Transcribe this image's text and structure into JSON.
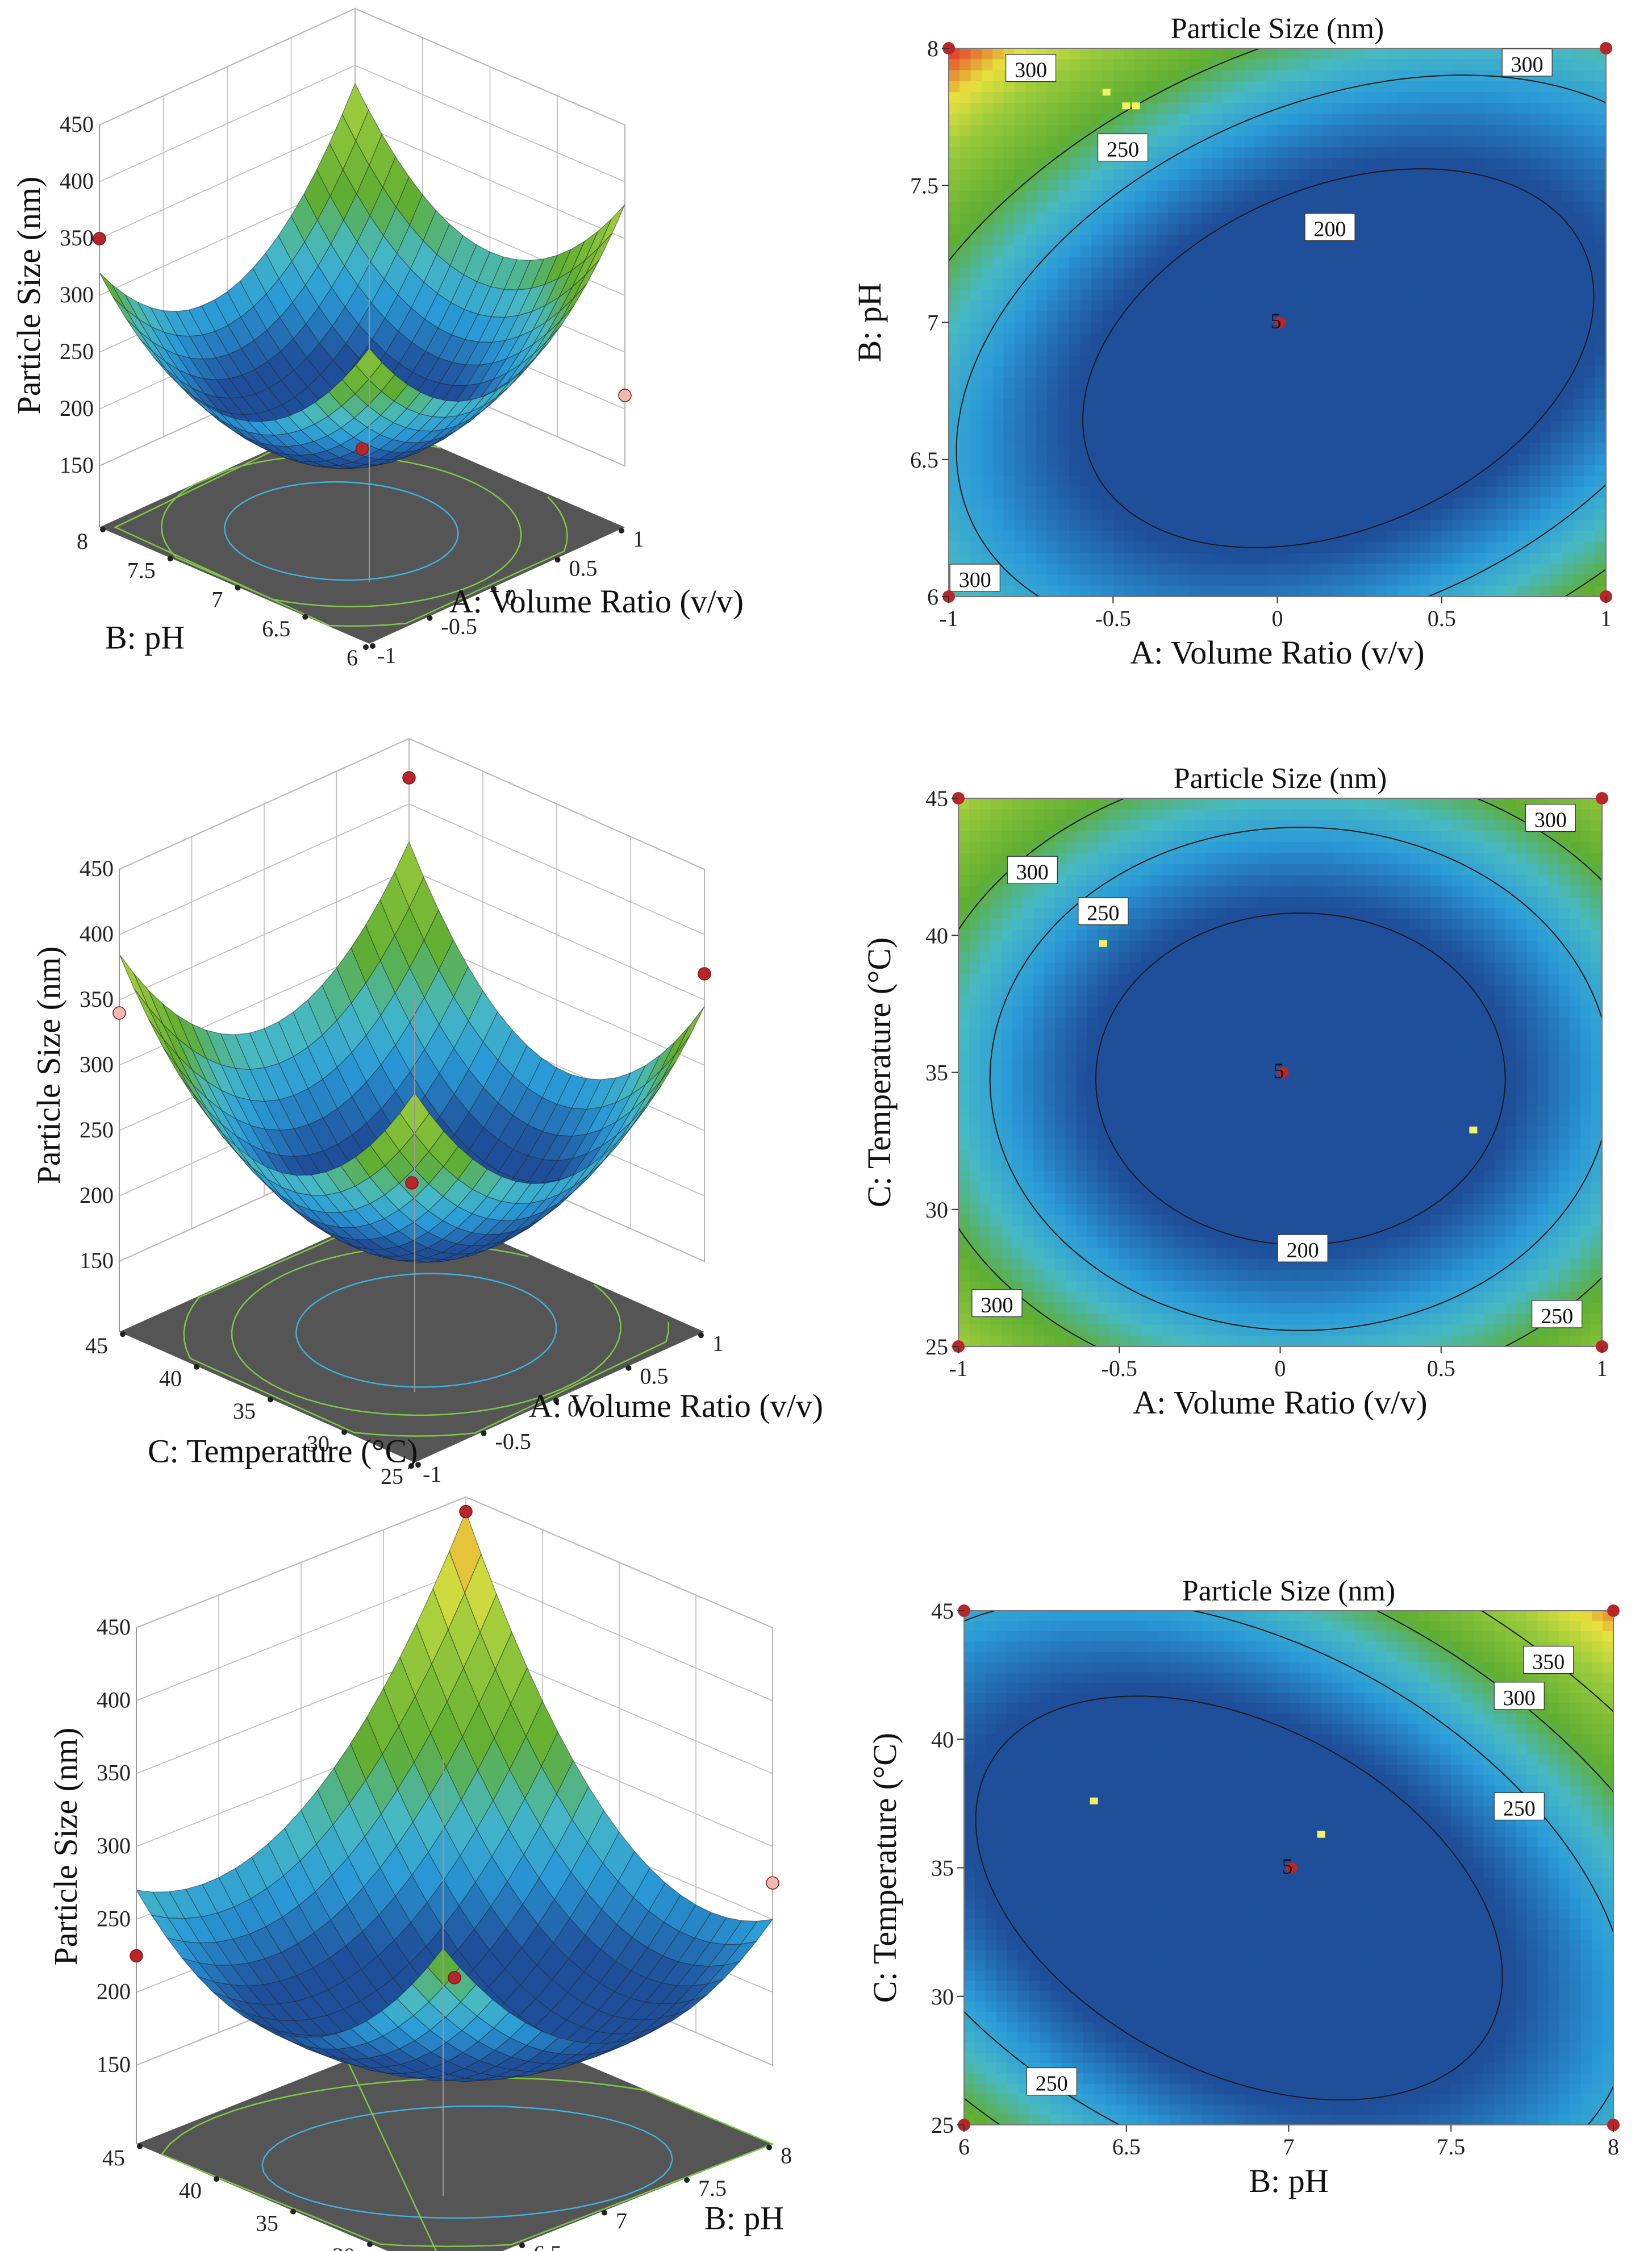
{
  "chart_data": [
    {
      "type": "surface",
      "id": "s1",
      "xlabel": "A: Volume Ratio (v/v)",
      "ylabel": "B: pH",
      "zlabel": "Particle Size (nm)",
      "x_ticks": [
        "-1",
        "-0.5",
        "0",
        "0.5",
        "1"
      ],
      "y_ticks": [
        "6",
        "6.5",
        "7",
        "7.5",
        "8"
      ],
      "z_ticks": [
        "150",
        "200",
        "250",
        "300",
        "350",
        "400",
        "450"
      ],
      "xlim": [
        -1,
        1
      ],
      "ylim": [
        6,
        8
      ],
      "zlim": [
        150,
        450
      ],
      "model": {
        "c": 165,
        "a": 22,
        "b": -8,
        "aa": 100,
        "bb": 95,
        "ab": 10
      },
      "design_points": [
        {
          "x": -1,
          "y": 8,
          "z": 350
        },
        {
          "x": 1,
          "y": 6,
          "z": 212
        },
        {
          "x": 0,
          "y": 7,
          "z": 165
        }
      ]
    },
    {
      "type": "contour",
      "id": "c1",
      "title": "Particle Size (nm)",
      "xlabel": "A: Volume Ratio (v/v)",
      "ylabel": "B: pH",
      "x_ticks": [
        "-1",
        "-0.5",
        "0",
        "0.5",
        "1"
      ],
      "y_ticks": [
        "6",
        "6.5",
        "7",
        "7.5",
        "8"
      ],
      "xlim": [
        -1,
        1
      ],
      "ylim": [
        6,
        8
      ],
      "model": {
        "c": 165,
        "a": -35,
        "b": 35,
        "aa": 75,
        "bb": 95,
        "ab": -55
      },
      "contour_levels": [
        200,
        250,
        300
      ],
      "contour_labels": [
        {
          "text": "300",
          "x": -0.75,
          "y": 7.92
        },
        {
          "text": "300",
          "x": 0.76,
          "y": 7.94
        },
        {
          "text": "250",
          "x": -0.47,
          "y": 7.63
        },
        {
          "text": "200",
          "x": 0.16,
          "y": 7.34
        },
        {
          "text": "300",
          "x": -0.92,
          "y": 6.06
        }
      ],
      "center_point": {
        "x": 0,
        "y": 7,
        "label": "5"
      },
      "corner_points": [
        {
          "x": -1,
          "y": 8
        },
        {
          "x": 1,
          "y": 8
        },
        {
          "x": -1,
          "y": 6
        },
        {
          "x": 1,
          "y": 6
        }
      ],
      "markers": [
        {
          "x": -0.52,
          "y": 7.84
        },
        {
          "x": -0.46,
          "y": 7.79
        },
        {
          "x": -0.43,
          "y": 7.79
        }
      ]
    },
    {
      "type": "surface",
      "id": "s2",
      "xlabel": "A: Volume Ratio (v/v)",
      "ylabel": "C: Temperature (°C)",
      "zlabel": "Particle Size (nm)",
      "x_ticks": [
        "-1",
        "-0.5",
        "0",
        "0.5",
        "1"
      ],
      "y_ticks": [
        "25",
        "30",
        "35",
        "40",
        "45"
      ],
      "z_ticks": [
        "150",
        "200",
        "250",
        "300",
        "350",
        "400",
        "450"
      ],
      "xlim": [
        -1,
        1
      ],
      "ylim": [
        25,
        45
      ],
      "zlim": [
        150,
        450
      ],
      "model": {
        "c": 160,
        "a": -12,
        "b": 8,
        "aa": 100,
        "bb": 110,
        "ab": 5
      },
      "design_points": [
        {
          "x": -1,
          "y": 45,
          "z": 340
        },
        {
          "x": 1,
          "y": 25,
          "z": 370
        },
        {
          "x": 1,
          "y": 45,
          "z": 420
        },
        {
          "x": 0,
          "y": 35,
          "z": 210
        }
      ]
    },
    {
      "type": "contour",
      "id": "c2",
      "title": "Particle Size (nm)",
      "xlabel": "A: Volume Ratio (v/v)",
      "ylabel": "C: Temperature (°C)",
      "x_ticks": [
        "-1",
        "-0.5",
        "0",
        "0.5",
        "1"
      ],
      "y_ticks": [
        "25",
        "30",
        "35",
        "40",
        "45"
      ],
      "xlim": [
        -1,
        1
      ],
      "ylim": [
        25,
        45
      ],
      "model": {
        "c": 162,
        "a": -12,
        "b": 5,
        "aa": 95,
        "bb": 105,
        "ab": 0
      },
      "contour_levels": [
        200,
        250,
        300
      ],
      "contour_labels": [
        {
          "text": "300",
          "x": -0.77,
          "y": 42.3
        },
        {
          "text": "300",
          "x": 0.84,
          "y": 44.2
        },
        {
          "text": "250",
          "x": -0.55,
          "y": 40.8
        },
        {
          "text": "200",
          "x": 0.07,
          "y": 28.5
        },
        {
          "text": "300",
          "x": -0.88,
          "y": 26.5
        },
        {
          "text": "250",
          "x": 0.86,
          "y": 26.1
        }
      ],
      "center_point": {
        "x": 0,
        "y": 35,
        "label": "5"
      },
      "corner_points": [
        {
          "x": -1,
          "y": 45
        },
        {
          "x": 1,
          "y": 45
        },
        {
          "x": -1,
          "y": 25
        },
        {
          "x": 1,
          "y": 25
        }
      ],
      "markers": [
        {
          "x": -0.55,
          "y": 39.7
        },
        {
          "x": 0.6,
          "y": 32.9
        }
      ]
    },
    {
      "type": "surface",
      "id": "s3",
      "xlabel": "B: pH",
      "ylabel": "C: Temperature (°C)",
      "zlabel": "Particle Size (nm)",
      "x_ticks": [
        "6",
        "6.5",
        "7",
        "7.5",
        "8"
      ],
      "y_ticks": [
        "25",
        "30",
        "35",
        "40",
        "45"
      ],
      "z_ticks": [
        "150",
        "200",
        "250",
        "300",
        "350",
        "400",
        "450"
      ],
      "xlim": [
        6,
        8
      ],
      "ylim": [
        25,
        45
      ],
      "zlim": [
        150,
        450
      ],
      "model": {
        "c": 165,
        "a": 25,
        "b": 35,
        "aa": 75,
        "bb": 80,
        "ab": 60
      },
      "design_points": [
        {
          "x": 8,
          "y": 45,
          "z": 440
        },
        {
          "x": 8,
          "y": 25,
          "z": 275
        },
        {
          "x": 6,
          "y": 45,
          "z": 225
        },
        {
          "x": 7,
          "y": 35,
          "z": 210
        }
      ]
    },
    {
      "type": "contour",
      "id": "c3",
      "title": "Particle Size (nm)",
      "xlabel": "B: pH",
      "ylabel": "C: Temperature (°C)",
      "x_ticks": [
        "6",
        "6.5",
        "7",
        "7.5",
        "8"
      ],
      "y_ticks": [
        "25",
        "30",
        "35",
        "40",
        "45"
      ],
      "xlim": [
        6,
        8
      ],
      "ylim": [
        25,
        45
      ],
      "model": {
        "c": 162,
        "a": 30,
        "b": 28,
        "aa": 75,
        "bb": 80,
        "ab": 60
      },
      "contour_levels": [
        200,
        250,
        300,
        350
      ],
      "contour_labels": [
        {
          "text": "350",
          "x": 7.8,
          "y": 43.0
        },
        {
          "text": "300",
          "x": 7.71,
          "y": 41.6
        },
        {
          "text": "250",
          "x": 7.71,
          "y": 37.3
        },
        {
          "text": "250",
          "x": 6.27,
          "y": 26.6
        }
      ],
      "center_point": {
        "x": 7,
        "y": 35,
        "label": "5"
      },
      "corner_points": [
        {
          "x": 6,
          "y": 45
        },
        {
          "x": 8,
          "y": 45
        },
        {
          "x": 6,
          "y": 25
        },
        {
          "x": 8,
          "y": 25
        }
      ],
      "markers": [
        {
          "x": 6.4,
          "y": 37.6
        },
        {
          "x": 7.1,
          "y": 36.3
        }
      ]
    }
  ],
  "colors": {
    "surface_low": "#1f4f9a",
    "surface_mid_low": "#2a9ad8",
    "surface_mid": "#47b9c4",
    "surface_mid_high": "#5fae32",
    "surface_high": "#9bcb3c",
    "surface_higher": "#e7e23d",
    "surface_top": "#e34a2b",
    "floor": "#555555",
    "design_point": "#b8262a",
    "design_point_light": "#f3b9b0",
    "marker": "#f4f060"
  }
}
